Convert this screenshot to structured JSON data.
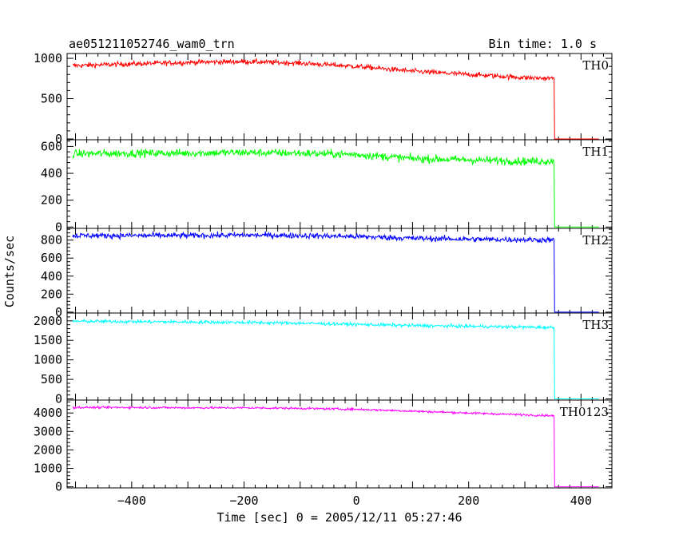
{
  "chart_data": {
    "type": "line",
    "title": "ae051211052746_wam0_trn",
    "subtitle": "Bin time: 1.0 s",
    "xlabel": "Time [sec] 0 = 2005/12/11 05:27:46",
    "ylabel": "Counts/sec",
    "xlim": [
      -515,
      455
    ],
    "x_ticks": [
      -400,
      -200,
      0,
      200,
      400
    ],
    "x_tick_labels": [
      "−400",
      "−200",
      "0",
      "200",
      "400"
    ],
    "grid": false,
    "step_time": 352,
    "x_start": -505,
    "x_end": 432,
    "panels": [
      {
        "name": "TH0",
        "color": "#ff0000",
        "ylim": [
          -10,
          1060
        ],
        "y_ticks": [
          0,
          500,
          1000
        ],
        "y_tick_labels": [
          "0",
          "500",
          "1000"
        ],
        "x": [
          -505,
          -400,
          -300,
          -200,
          -100,
          0,
          100,
          200,
          300,
          352,
          353,
          432
        ],
        "values": [
          910,
          930,
          950,
          960,
          940,
          900,
          840,
          800,
          760,
          750,
          0,
          0
        ],
        "noise": 30
      },
      {
        "name": "TH1",
        "color": "#00ff00",
        "ylim": [
          -10,
          650
        ],
        "y_ticks": [
          0,
          200,
          400,
          600
        ],
        "y_tick_labels": [
          "0",
          "200",
          "400",
          "600"
        ],
        "x": [
          -505,
          -400,
          -300,
          -200,
          -100,
          0,
          100,
          200,
          300,
          352,
          353,
          432
        ],
        "values": [
          545,
          550,
          550,
          555,
          550,
          540,
          510,
          500,
          490,
          490,
          0,
          0
        ],
        "noise": 28
      },
      {
        "name": "TH2",
        "color": "#0000ff",
        "ylim": [
          -10,
          930
        ],
        "y_ticks": [
          0,
          200,
          400,
          600,
          800
        ],
        "y_tick_labels": [
          "0",
          "200",
          "400",
          "600",
          "800"
        ],
        "x": [
          -505,
          -400,
          -300,
          -200,
          -100,
          0,
          100,
          200,
          300,
          352,
          353,
          432
        ],
        "values": [
          850,
          850,
          850,
          855,
          850,
          840,
          820,
          810,
          805,
          800,
          0,
          0
        ],
        "noise": 30
      },
      {
        "name": "TH3",
        "color": "#00ffff",
        "ylim": [
          -30,
          2200
        ],
        "y_ticks": [
          0,
          500,
          1000,
          1500,
          2000
        ],
        "y_tick_labels": [
          "0",
          "500",
          "1000",
          "1500",
          "2000"
        ],
        "x": [
          -505,
          -400,
          -300,
          -200,
          -100,
          0,
          100,
          200,
          300,
          352,
          353,
          432
        ],
        "values": [
          1990,
          1980,
          1970,
          1960,
          1940,
          1910,
          1880,
          1860,
          1840,
          1830,
          0,
          0
        ],
        "noise": 40
      },
      {
        "name": "TH0123",
        "color": "#ff00ff",
        "ylim": [
          -60,
          4700
        ],
        "y_ticks": [
          0,
          1000,
          2000,
          3000,
          4000
        ],
        "y_tick_labels": [
          "0",
          "1000",
          "2000",
          "3000",
          "4000"
        ],
        "x": [
          -505,
          -400,
          -300,
          -200,
          -100,
          0,
          100,
          200,
          300,
          352,
          353,
          432
        ],
        "values": [
          4300,
          4300,
          4280,
          4280,
          4250,
          4200,
          4100,
          4000,
          3900,
          3850,
          0,
          0
        ],
        "noise": 55
      }
    ]
  }
}
